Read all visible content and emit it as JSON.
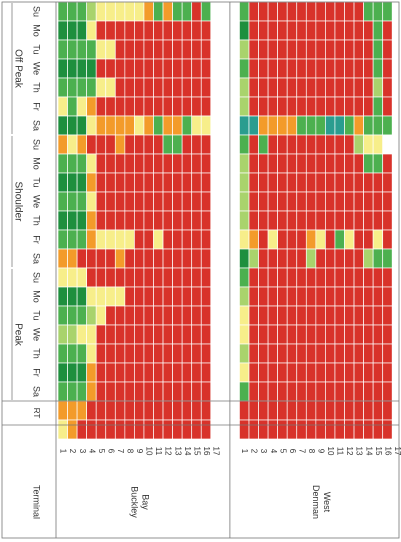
{
  "chart_data": {
    "type": "heatmap",
    "colors": {
      "dark_green": "#1e8f3e",
      "green": "#4cb04f",
      "light_green": "#a9d36c",
      "yellow": "#f7ee8a",
      "orange": "#f39b2a",
      "red": "#d8322a",
      "white": "#ffffff",
      "teal": "#2a9d8f"
    },
    "header": {
      "terminal": "Terminal",
      "rt": "RT"
    },
    "groups": [
      {
        "name": "Off Peak",
        "days": [
          "Su",
          "Mo",
          "Tu",
          "We",
          "Th",
          "Fr",
          "Sa"
        ]
      },
      {
        "name": "Shoulder",
        "days": [
          "Su",
          "Mo",
          "Tu",
          "We",
          "Th",
          "Fr",
          "Sa"
        ]
      },
      {
        "name": "Peak",
        "days": [
          "Su",
          "Mo",
          "Tu",
          "We",
          "Th",
          "Fr",
          "Sa"
        ]
      }
    ],
    "terminals": [
      {
        "name_lines": [
          "Buckley",
          "Bay"
        ],
        "rts": [
          "1",
          "2",
          "3",
          "4",
          "5",
          "6",
          "7",
          "8",
          "9",
          "10",
          "11",
          "12",
          "13",
          "14",
          "15",
          "16",
          "17"
        ],
        "rows": [
          "GDGDGYDOGDGDGOYDGLGDGOY",
          "GDGDGGDYGDGDGOYDGLGDGOO",
          "GDGDGYDOGDGDGRYDGYGDGOR",
          "LYGDGOYRYOYOORRYLYYOORR",
          "YRYRYRORRRRRYRRYYRRRRRR",
          "YRYRYRORRRRRYRRYRRRRRRR",
          "YRRRRROORRRRYORYRRRRRRR",
          "YRRRRRORRRRRYRRRRRRRRRR",
          "YRRRRRYRRRRRRRRRRRRRRRR",
          "ORRRRRORRRRRRRRRRRRRRRR",
          "GRRRRRGRRRRRYRRRRRRRRRR",
          "ORRRRROGRRRRRRRRRRRRRRR",
          "GRRRRROGRRRRRRRRRRRRRRR",
          "GRRRRRGRRRRRRRRRRRRRRRR",
          "RRRRRRYRRRRRRRRRRRRRRRR",
          "GRRRRRYRRRRRRRRRRRRRRRR",
          "WWWWWWWWWWWWWWWWWWWWWWW"
        ]
      },
      {
        "name_lines": [
          "Denman",
          "West"
        ],
        "rts": [
          "1",
          "2",
          "3",
          "4",
          "5",
          "6",
          "7",
          "8",
          "9",
          "10",
          "11",
          "12",
          "13",
          "14",
          "15",
          "16",
          "17"
        ],
        "rows": [
          "GDLGLLTGLLLLYDGLYYLYGRR",
          "RRRRRRTRRRRROLRRRRRRRRR",
          "RRRRRROGRRRRRRRRRRRRRRR",
          "RRRRRRORRRRRYRRRRRRRRRR",
          "RRRRRRORRRRRRRRRRRRRRRR",
          "RRRRRRORRRRRRRRRRRRRRRR",
          "RRRRRRGRRRRRRRRRRRRRRRR",
          "RRRRRRGRRRRROLRRRRRRRRR",
          "RRRRRRGRRRRRYRRRRRRRRRR",
          "RRRRRRTRRRRRRRRRRRRRRRR",
          "RRRRRRTRRRRRGRRRRRRRRRR",
          "RRRRRRGRRRRRYRRRRRRRRRR",
          "RRRRRROLRRRRRRRRRRRRRRR",
          "GRRRRRGYGRRRRLRRRRRRRRR",
          "GGGGLGGYGRRRYGRRRRRRRRR",
          "GRRRRRGWRRRRRGRRRRRRRRR",
          "WWWWWWWWWWWWWWWWWWWWWWW"
        ]
      }
    ]
  }
}
